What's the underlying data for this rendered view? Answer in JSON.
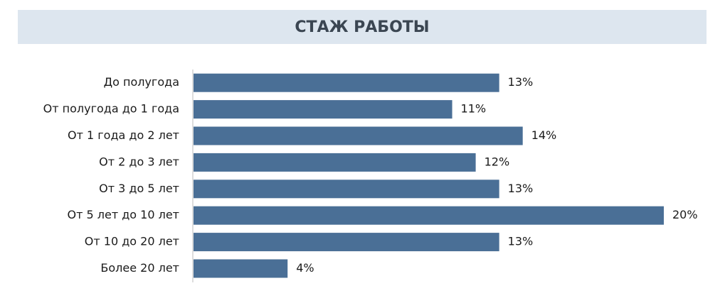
{
  "chart_data": {
    "type": "bar",
    "orientation": "horizontal",
    "title": "СТАЖ РАБОТЫ",
    "categories": [
      "До полугода",
      "От полугода до 1 года",
      "От 1 года до 2 лет",
      "От 2 до 3 лет",
      "От 3 до 5 лет",
      "От 5 лет до 10 лет",
      "От 10 до 20 лет",
      "Более 20 лет"
    ],
    "values": [
      13,
      11,
      14,
      12,
      13,
      20,
      13,
      4
    ],
    "value_labels": [
      "13%",
      "11%",
      "14%",
      "12%",
      "13%",
      "20%",
      "13%",
      "4%"
    ],
    "color": "#4a6f96"
  }
}
